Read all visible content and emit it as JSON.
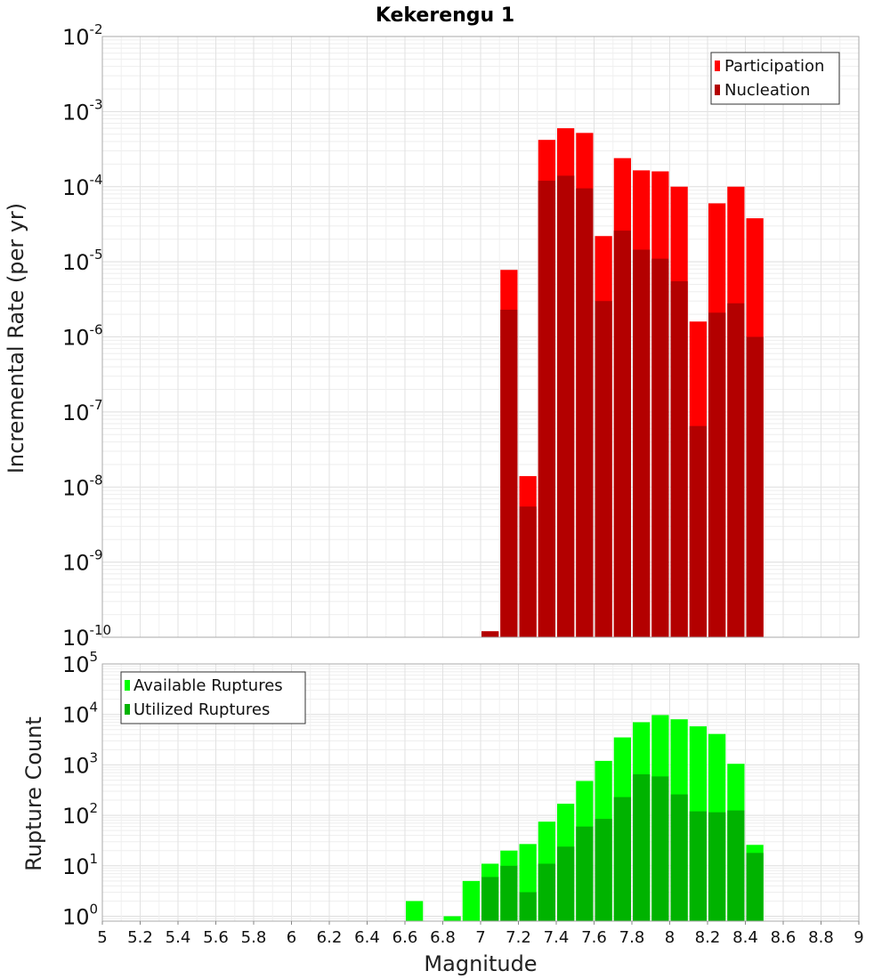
{
  "chart_data": [
    {
      "type": "bar",
      "title": "Kekerengu 1",
      "ylabel": "Incremental Rate (per yr)",
      "xlabel": "",
      "yscale": "log",
      "ylim": [
        1e-10,
        0.01
      ],
      "xlim": [
        5,
        9
      ],
      "y_tick_exponents": [
        -10,
        -9,
        -8,
        -7,
        -6,
        -5,
        -4,
        -3,
        -2
      ],
      "grid": true,
      "legend_position": "top-right",
      "x": [
        7.05,
        7.15,
        7.25,
        7.35,
        7.45,
        7.55,
        7.65,
        7.75,
        7.85,
        7.95,
        8.05,
        8.15,
        8.25,
        8.35,
        8.45
      ],
      "series": [
        {
          "name": "Participation",
          "color": "#ff0000",
          "values": [
            1.2e-10,
            7.8e-06,
            1.4e-08,
            0.00042,
            0.0006,
            0.00052,
            2.2e-05,
            0.00024,
            0.000165,
            0.00016,
            0.0001,
            1.6e-06,
            6e-05,
            0.0001,
            3.8e-05
          ]
        },
        {
          "name": "Nucleation",
          "color": "#b30000",
          "values": [
            1.2e-10,
            2.3e-06,
            5.5e-09,
            0.00012,
            0.00014,
            9.5e-05,
            3e-06,
            2.6e-05,
            1.45e-05,
            1.1e-05,
            5.5e-06,
            6.5e-08,
            2.1e-06,
            2.8e-06,
            1e-06
          ]
        }
      ]
    },
    {
      "type": "bar",
      "title": "",
      "ylabel": "Rupture Count",
      "xlabel": "Magnitude",
      "yscale": "log",
      "ylim": [
        0.8,
        100000
      ],
      "xlim": [
        5,
        9
      ],
      "y_tick_exponents": [
        0,
        1,
        2,
        3,
        4,
        5
      ],
      "x_ticks": [
        "5",
        "5.2",
        "5.4",
        "5.6",
        "5.8",
        "6",
        "6.2",
        "6.4",
        "6.6",
        "6.8",
        "7",
        "7.2",
        "7.4",
        "7.6",
        "7.8",
        "8",
        "8.2",
        "8.4",
        "8.6",
        "8.8",
        "9"
      ],
      "grid": true,
      "legend_position": "top-left",
      "x": [
        6.65,
        6.85,
        6.95,
        7.05,
        7.15,
        7.25,
        7.35,
        7.45,
        7.55,
        7.65,
        7.75,
        7.85,
        7.95,
        8.05,
        8.15,
        8.25,
        8.35,
        8.45
      ],
      "series": [
        {
          "name": "Available Ruptures",
          "color": "#00ff00",
          "values": [
            2,
            1,
            5,
            11,
            20,
            27,
            75,
            170,
            480,
            1200,
            3500,
            7000,
            9700,
            8000,
            5800,
            4100,
            1050,
            26
          ]
        },
        {
          "name": "Utilized Ruptures",
          "color": "#00b300",
          "values": [
            0,
            0,
            0,
            6,
            10,
            3,
            11,
            24,
            60,
            85,
            230,
            650,
            590,
            260,
            120,
            115,
            125,
            18
          ]
        }
      ]
    }
  ]
}
